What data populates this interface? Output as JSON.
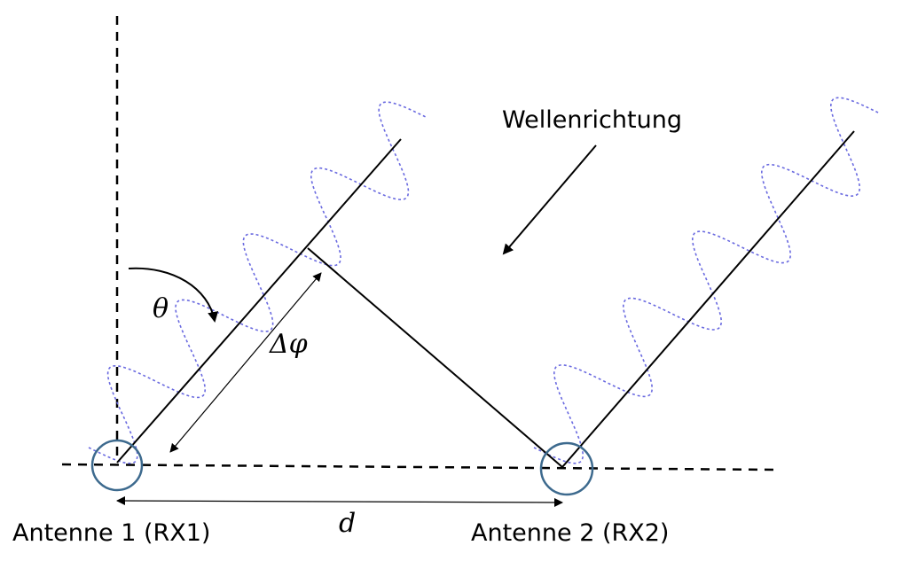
{
  "labels": {
    "wave_direction": "Wellenrichtung",
    "theta": "θ",
    "delta_phi": "Δφ",
    "distance": "d",
    "antenna1": "Antenne 1 (RX1)",
    "antenna2": "Antenne 2 (RX2)"
  },
  "colors": {
    "wave": "#6a6ae0",
    "antenna": "#3d6a8e",
    "line": "#000000"
  }
}
